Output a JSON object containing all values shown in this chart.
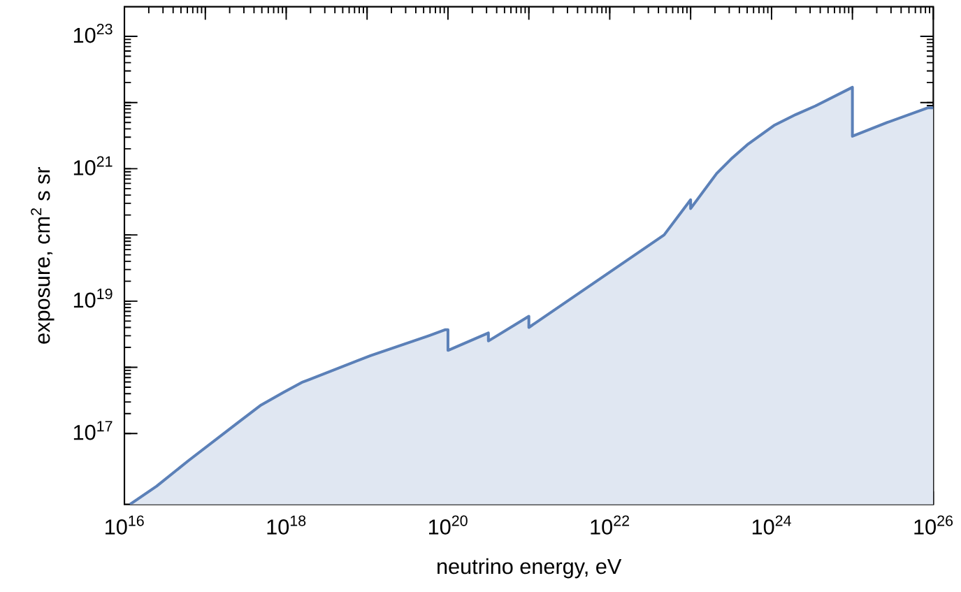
{
  "chart_data": {
    "type": "area",
    "xlabel": "neutrino energy, eV",
    "ylabel": "exposure, cm$^{2}$ s sr",
    "log": "xy",
    "color": "#5b80b8",
    "x": [
      1.17e+16,
      2.5e+16,
      6.2e+16,
      2.6e+17,
      4.9e+17,
      9.3e+17,
      1.6e+18,
      1.9e+18,
      1.1e+19,
      5.8e+19,
      9.3e+19,
      1e+20,
      1e+20,
      3.16e+20,
      3.16e+20,
      1e+21,
      1e+21,
      4.7e+22,
      1e+23,
      1e+23,
      2.1e+23,
      3.16e+23,
      5e+23,
      1.07e+24,
      2e+24,
      3.5e+24,
      1e+25,
      1e+25,
      2.7e+25,
      8.5e+25,
      1e+26
    ],
    "values": [
      8500000000000000.0,
      1.6e+16,
      3.9e+16,
      1.5e+17,
      2.7e+17,
      4.2e+17,
      6e+17,
      6.5e+17,
      1.5e+18,
      3e+18,
      3.7e+18,
      3.7e+18,
      1.8e+18,
      3.3e+18,
      2.5e+18,
      5.9e+18,
      4e+18,
      1e+20,
      3.4e+20,
      2.5e+20,
      8.5e+20,
      1.4e+21,
      2.3e+21,
      4.5e+21,
      6.6e+21,
      8.9e+21,
      1.7e+22,
      3.1e+21,
      5e+21,
      8.3e+21,
      8.3e+21
    ],
    "xlim": [
      1e+16,
      1e+26
    ],
    "ylim": [
      8500000000000000.0,
      2.8e+23
    ],
    "xticks": [
      {
        "value": 1e+16,
        "label": "10$^{16}$"
      },
      {
        "value": 1e+17,
        "label": null
      },
      {
        "value": 1e+18,
        "label": "10$^{18}$"
      },
      {
        "value": 1e+19,
        "label": null
      },
      {
        "value": 1e+20,
        "label": "10$^{20}$"
      },
      {
        "value": 1e+21,
        "label": null
      },
      {
        "value": 1e+22,
        "label": "10$^{22}$"
      },
      {
        "value": 1e+23,
        "label": null
      },
      {
        "value": 1e+24,
        "label": "10$^{24}$"
      },
      {
        "value": 1e+25,
        "label": null
      },
      {
        "value": 1e+26,
        "label": "10$^{26}$"
      }
    ],
    "yticks": [
      {
        "value": 1e+17,
        "label": "10$^{17}$"
      },
      {
        "value": 1e+18,
        "label": null
      },
      {
        "value": 1e+19,
        "label": "10$^{19}$"
      },
      {
        "value": 1e+20,
        "label": null
      },
      {
        "value": 1e+21,
        "label": "10$^{21}$"
      },
      {
        "value": 1e+22,
        "label": null
      },
      {
        "value": 1e+23,
        "label": "10$^{23}$"
      }
    ]
  }
}
